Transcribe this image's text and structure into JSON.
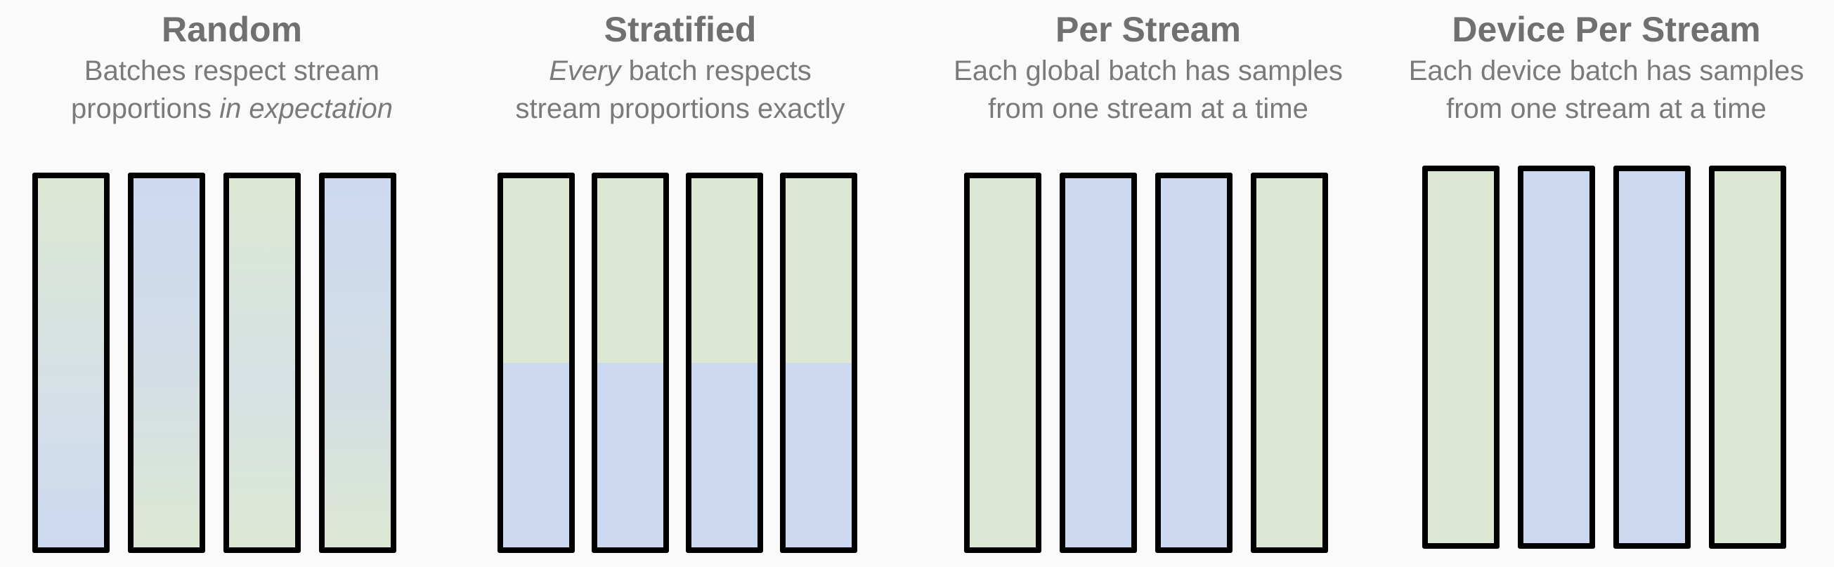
{
  "panels": {
    "random": {
      "title": "Random",
      "sub_line1": "Batches respect stream",
      "sub_line2_plain": "proportions ",
      "sub_line2_italic": "in expectation",
      "bars": [
        "mixed",
        "mixed",
        "mixed",
        "mixed"
      ]
    },
    "stratified": {
      "title": "Stratified",
      "sub_line1_italic": "Every",
      "sub_line1_plain": " batch respects",
      "sub_line2": "stream proportions exactly",
      "bars": [
        "split",
        "split",
        "split",
        "split"
      ]
    },
    "per_stream": {
      "title": "Per Stream",
      "sub_line1": "Each global batch has samples",
      "sub_line2": "from one stream at a time",
      "bars": [
        "green",
        "blue",
        "blue",
        "green"
      ]
    },
    "device_per_stream": {
      "title": "Device Per Stream",
      "sub_line1": "Each device batch has samples",
      "sub_line2": "from one stream at a time",
      "bars": [
        "green",
        "blue",
        "blue",
        "green"
      ]
    }
  },
  "colors": {
    "stream_a": "#dde8d4",
    "stream_b": "#ccd9f1",
    "outline": "#000000",
    "text": "#707070",
    "background": "#fafafa"
  },
  "stratified_split_fraction": 0.5
}
